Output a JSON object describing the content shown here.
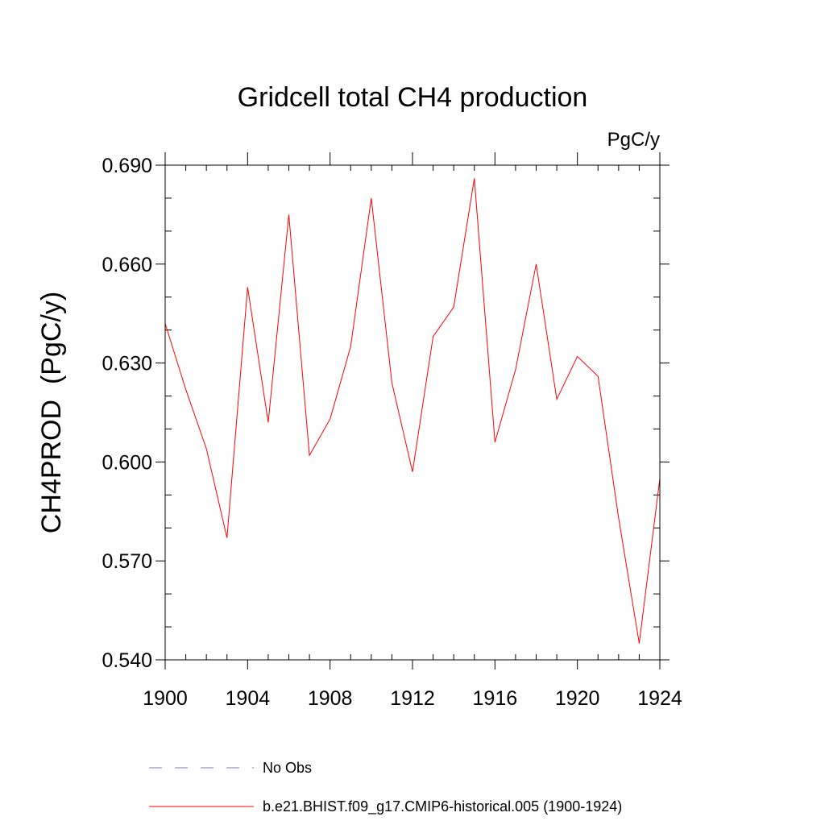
{
  "chart_data": {
    "type": "line",
    "title": "Gridcell total CH4 production",
    "units_label": "PgC/y",
    "xlabel": "",
    "ylabel": "CH4PROD  (PgC/y)",
    "xlim": [
      1900,
      1924
    ],
    "ylim": [
      0.54,
      0.69
    ],
    "x_ticks": [
      1900,
      1904,
      1908,
      1912,
      1916,
      1920,
      1924
    ],
    "x_tick_labels": [
      "1900",
      "1904",
      "1908",
      "1912",
      "1916",
      "1920",
      "1924"
    ],
    "y_ticks": [
      0.54,
      0.57,
      0.6,
      0.63,
      0.66,
      0.69
    ],
    "y_tick_labels": [
      "0.540",
      "0.570",
      "0.600",
      "0.630",
      "0.660",
      "0.690"
    ],
    "y_minor_step": 0.01,
    "x_minor_step": 1,
    "grid": false,
    "legend_position": "bottom",
    "series": [
      {
        "name": "b.e21.BHIST.f09_g17.CMIP6-historical.005 (1900-1924)",
        "color": "#ff0000",
        "style": "solid",
        "x": [
          1900,
          1901,
          1902,
          1903,
          1904,
          1905,
          1906,
          1907,
          1908,
          1909,
          1910,
          1911,
          1912,
          1913,
          1914,
          1915,
          1916,
          1917,
          1918,
          1919,
          1920,
          1921,
          1922,
          1923,
          1924
        ],
        "values": [
          0.642,
          0.622,
          0.604,
          0.577,
          0.653,
          0.612,
          0.675,
          0.602,
          0.613,
          0.635,
          0.68,
          0.624,
          0.597,
          0.638,
          0.647,
          0.686,
          0.606,
          0.628,
          0.66,
          0.619,
          0.632,
          0.626,
          0.583,
          0.545,
          0.595
        ]
      }
    ],
    "legend": [
      {
        "label": "No Obs",
        "color": "#7777cc",
        "style": "dashed"
      },
      {
        "label": "b.e21.BHIST.f09_g17.CMIP6-historical.005 (1900-1924)",
        "color": "#ff0000",
        "style": "solid"
      }
    ]
  }
}
